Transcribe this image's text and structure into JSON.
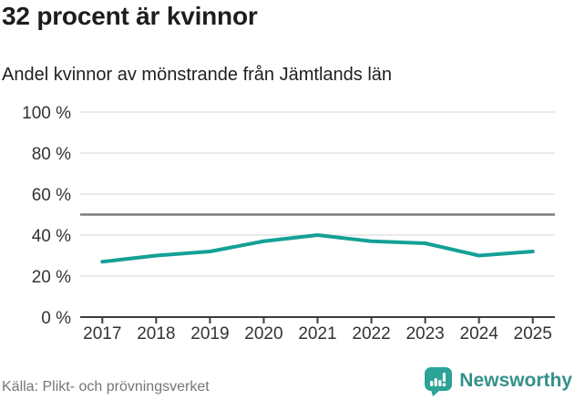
{
  "header": {
    "title": "32 procent är kvinnor",
    "subtitle": "Andel kvinnor av mönstrande från Jämtlands län"
  },
  "chart_data": {
    "type": "line",
    "title": "32 procent är kvinnor",
    "subtitle": "Andel kvinnor av mönstrande från Jämtlands län",
    "x": [
      2017,
      2018,
      2019,
      2020,
      2021,
      2022,
      2023,
      2024,
      2025
    ],
    "series": [
      {
        "name": "Andel kvinnor av mönstrande (%)",
        "values": [
          27,
          30,
          32,
          37,
          40,
          37,
          36,
          30,
          32
        ]
      }
    ],
    "ylim": [
      0,
      100
    ],
    "yticks": [
      0,
      20,
      40,
      60,
      80,
      100
    ],
    "ytick_labels": [
      "0 %",
      "20 %",
      "40 %",
      "60 %",
      "80 %",
      "100 %"
    ],
    "reference_line": {
      "value": 50
    },
    "grid": true,
    "legend": false,
    "xlabel": "",
    "ylabel": ""
  },
  "footer": {
    "source": "Källa: Plikt- och prövningsverket",
    "brand": "Newsworthy"
  },
  "colors": {
    "accent_teal": "#14a096",
    "reference_gray": "#7d7d7d",
    "grid_gray": "#e4e4e4",
    "axis_dark": "#3d3d3d",
    "axis_label": "#333333",
    "title_dark": "#1d1d1b",
    "source_gray": "#767676",
    "brand_teal": "#35918a",
    "logo_teal": "#2ba396"
  }
}
